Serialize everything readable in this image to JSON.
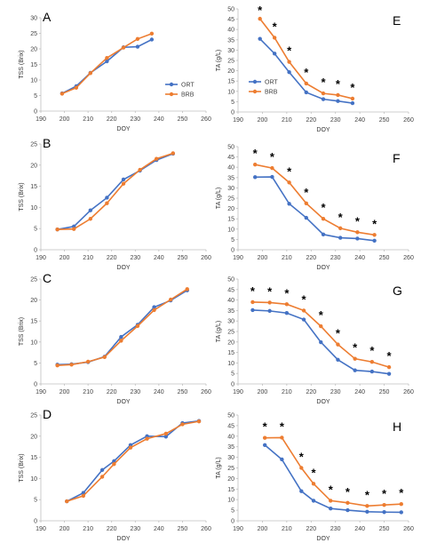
{
  "colors": {
    "ORT": "#4472C4",
    "BRB": "#ED7D31",
    "axis": "#bfbfbf",
    "text": "#444444"
  },
  "chart_data": [
    {
      "type": "line",
      "panel": "A",
      "xlabel": "DOY",
      "ylabel": "TSS (Brix)",
      "xlim": [
        190,
        260
      ],
      "ylim": [
        0,
        30
      ],
      "xticks": [
        190,
        200,
        210,
        220,
        230,
        240,
        250,
        260
      ],
      "yticks": [
        0,
        5,
        10,
        15,
        20,
        25,
        30
      ],
      "legend": true,
      "legend_position": "center-right",
      "asterisks": [],
      "series": [
        {
          "name": "ORT",
          "x": [
            199,
            205,
            211,
            218,
            225,
            231,
            237
          ],
          "y": [
            5.7,
            8.0,
            12.3,
            16.0,
            20.5,
            20.7,
            23.0
          ]
        },
        {
          "name": "BRB",
          "x": [
            199,
            205,
            211,
            218,
            225,
            231,
            237
          ],
          "y": [
            5.6,
            7.5,
            12.2,
            17.1,
            20.4,
            23.2,
            24.9
          ]
        }
      ]
    },
    {
      "type": "line",
      "panel": "E",
      "xlabel": "DOY",
      "ylabel": "TA (g/L)",
      "xlim": [
        190,
        260
      ],
      "ylim": [
        0,
        50
      ],
      "xticks": [
        190,
        200,
        210,
        220,
        230,
        240,
        250,
        260
      ],
      "yticks": [
        0,
        5,
        10,
        15,
        20,
        25,
        30,
        35,
        40,
        45,
        50
      ],
      "legend": true,
      "legend_position": "center-left",
      "asterisks": [
        199,
        205,
        211,
        218,
        225,
        231,
        237
      ],
      "series": [
        {
          "name": "ORT",
          "x": [
            199,
            205,
            211,
            218,
            225,
            231,
            237
          ],
          "y": [
            35.5,
            28.3,
            19.3,
            9.5,
            6.2,
            5.3,
            4.3
          ]
        },
        {
          "name": "BRB",
          "x": [
            199,
            205,
            211,
            218,
            225,
            231,
            237
          ],
          "y": [
            45.2,
            36.0,
            24.3,
            13.8,
            9.0,
            8.2,
            6.5
          ]
        }
      ]
    },
    {
      "type": "line",
      "panel": "B",
      "xlabel": "DOY",
      "ylabel": "TSS (Brix)",
      "xlim": [
        190,
        260
      ],
      "ylim": [
        0,
        25
      ],
      "xticks": [
        190,
        200,
        210,
        220,
        230,
        240,
        250,
        260
      ],
      "yticks": [
        0,
        5,
        10,
        15,
        20,
        25
      ],
      "legend": false,
      "asterisks": [],
      "series": [
        {
          "name": "ORT",
          "x": [
            197,
            204,
            211,
            218,
            225,
            232,
            239,
            246
          ],
          "y": [
            4.8,
            5.5,
            9.3,
            12.3,
            16.6,
            18.7,
            21.2,
            22.7
          ]
        },
        {
          "name": "BRB",
          "x": [
            197,
            204,
            211,
            218,
            225,
            232,
            239,
            246
          ],
          "y": [
            4.8,
            4.9,
            7.3,
            11.0,
            15.6,
            18.9,
            21.5,
            22.8
          ]
        }
      ]
    },
    {
      "type": "line",
      "panel": "F",
      "xlabel": "DOY",
      "ylabel": "TA (g/L)",
      "xlim": [
        190,
        260
      ],
      "ylim": [
        0,
        50
      ],
      "xticks": [
        190,
        200,
        210,
        220,
        230,
        240,
        250,
        260
      ],
      "yticks": [
        0,
        5,
        10,
        15,
        20,
        25,
        30,
        35,
        40,
        45,
        50
      ],
      "legend": false,
      "asterisks": [
        197,
        204,
        211,
        218,
        225,
        232,
        239,
        246
      ],
      "series": [
        {
          "name": "ORT",
          "x": [
            197,
            204,
            211,
            218,
            225,
            232,
            239,
            246
          ],
          "y": [
            35.2,
            35.3,
            22.3,
            15.5,
            7.4,
            5.8,
            5.4,
            4.4
          ]
        },
        {
          "name": "BRB",
          "x": [
            197,
            204,
            211,
            218,
            225,
            232,
            239,
            246
          ],
          "y": [
            41.3,
            39.6,
            32.6,
            22.5,
            15.0,
            10.4,
            8.5,
            7.2
          ]
        }
      ]
    },
    {
      "type": "line",
      "panel": "C",
      "xlabel": "DOY",
      "ylabel": "TSS (Brix)",
      "xlim": [
        190,
        260
      ],
      "ylim": [
        0,
        25
      ],
      "xticks": [
        190,
        200,
        210,
        220,
        230,
        240,
        250,
        260
      ],
      "yticks": [
        0,
        5,
        10,
        15,
        20,
        25
      ],
      "legend": false,
      "asterisks": [],
      "series": [
        {
          "name": "ORT",
          "x": [
            197,
            203,
            210,
            217,
            224,
            231,
            238,
            245,
            252
          ],
          "y": [
            4.6,
            4.7,
            5.2,
            6.5,
            11.2,
            14.1,
            18.3,
            19.9,
            22.3
          ]
        },
        {
          "name": "BRB",
          "x": [
            197,
            203,
            210,
            217,
            224,
            231,
            238,
            245,
            252
          ],
          "y": [
            4.4,
            4.6,
            5.3,
            6.4,
            10.3,
            13.8,
            17.6,
            20.1,
            22.6
          ]
        }
      ]
    },
    {
      "type": "line",
      "panel": "G",
      "xlabel": "DOY",
      "ylabel": "TA (g/L)",
      "xlim": [
        190,
        260
      ],
      "ylim": [
        0,
        50
      ],
      "xticks": [
        190,
        200,
        210,
        220,
        230,
        240,
        250,
        260
      ],
      "yticks": [
        0,
        5,
        10,
        15,
        20,
        25,
        30,
        35,
        40,
        45,
        50
      ],
      "legend": false,
      "asterisks": [
        196,
        203,
        210,
        217,
        224,
        231,
        238,
        245,
        252
      ],
      "series": [
        {
          "name": "ORT",
          "x": [
            196,
            203,
            210,
            217,
            224,
            231,
            238,
            245,
            252
          ],
          "y": [
            35.2,
            34.8,
            33.8,
            30.7,
            19.9,
            11.5,
            6.5,
            5.9,
            4.8
          ]
        },
        {
          "name": "BRB",
          "x": [
            196,
            203,
            210,
            217,
            224,
            231,
            238,
            245,
            252
          ],
          "y": [
            39.0,
            38.8,
            38.0,
            35.0,
            27.5,
            18.8,
            12.0,
            10.5,
            8.0
          ]
        }
      ]
    },
    {
      "type": "line",
      "panel": "D",
      "xlabel": "DOY",
      "ylabel": "TSS (Brix)",
      "xlim": [
        190,
        260
      ],
      "ylim": [
        0,
        25
      ],
      "xticks": [
        190,
        200,
        210,
        220,
        230,
        240,
        250,
        260
      ],
      "yticks": [
        0,
        5,
        10,
        15,
        20,
        25
      ],
      "legend": false,
      "asterisks": [],
      "series": [
        {
          "name": "ORT",
          "x": [
            201,
            208,
            216,
            221,
            228,
            235,
            243,
            250,
            257
          ],
          "y": [
            4.6,
            6.6,
            12.0,
            14.1,
            17.9,
            20.0,
            19.9,
            23.1,
            23.6
          ]
        },
        {
          "name": "BRB",
          "x": [
            201,
            208,
            216,
            221,
            228,
            235,
            243,
            250,
            257
          ],
          "y": [
            4.6,
            5.9,
            10.4,
            13.4,
            17.3,
            19.4,
            20.6,
            22.8,
            23.5
          ]
        }
      ]
    },
    {
      "type": "line",
      "panel": "H",
      "xlabel": "DOY",
      "ylabel": "TA (g/L)",
      "xlim": [
        190,
        260
      ],
      "ylim": [
        0,
        50
      ],
      "xticks": [
        190,
        200,
        210,
        220,
        230,
        240,
        250,
        260
      ],
      "yticks": [
        0,
        5,
        10,
        15,
        20,
        25,
        30,
        35,
        40,
        45,
        50
      ],
      "legend": false,
      "asterisks": [
        201,
        208,
        216,
        221,
        228,
        235,
        243,
        250,
        257
      ],
      "series": [
        {
          "name": "ORT",
          "x": [
            201,
            208,
            216,
            221,
            228,
            235,
            243,
            250,
            257
          ],
          "y": [
            35.8,
            29.0,
            14.0,
            9.5,
            5.8,
            5.0,
            4.3,
            4.1,
            4.0
          ]
        },
        {
          "name": "BRB",
          "x": [
            201,
            208,
            216,
            221,
            228,
            235,
            243,
            250,
            257
          ],
          "y": [
            39.2,
            39.3,
            25.0,
            17.5,
            9.5,
            8.5,
            7.0,
            7.5,
            7.9
          ]
        }
      ]
    }
  ]
}
